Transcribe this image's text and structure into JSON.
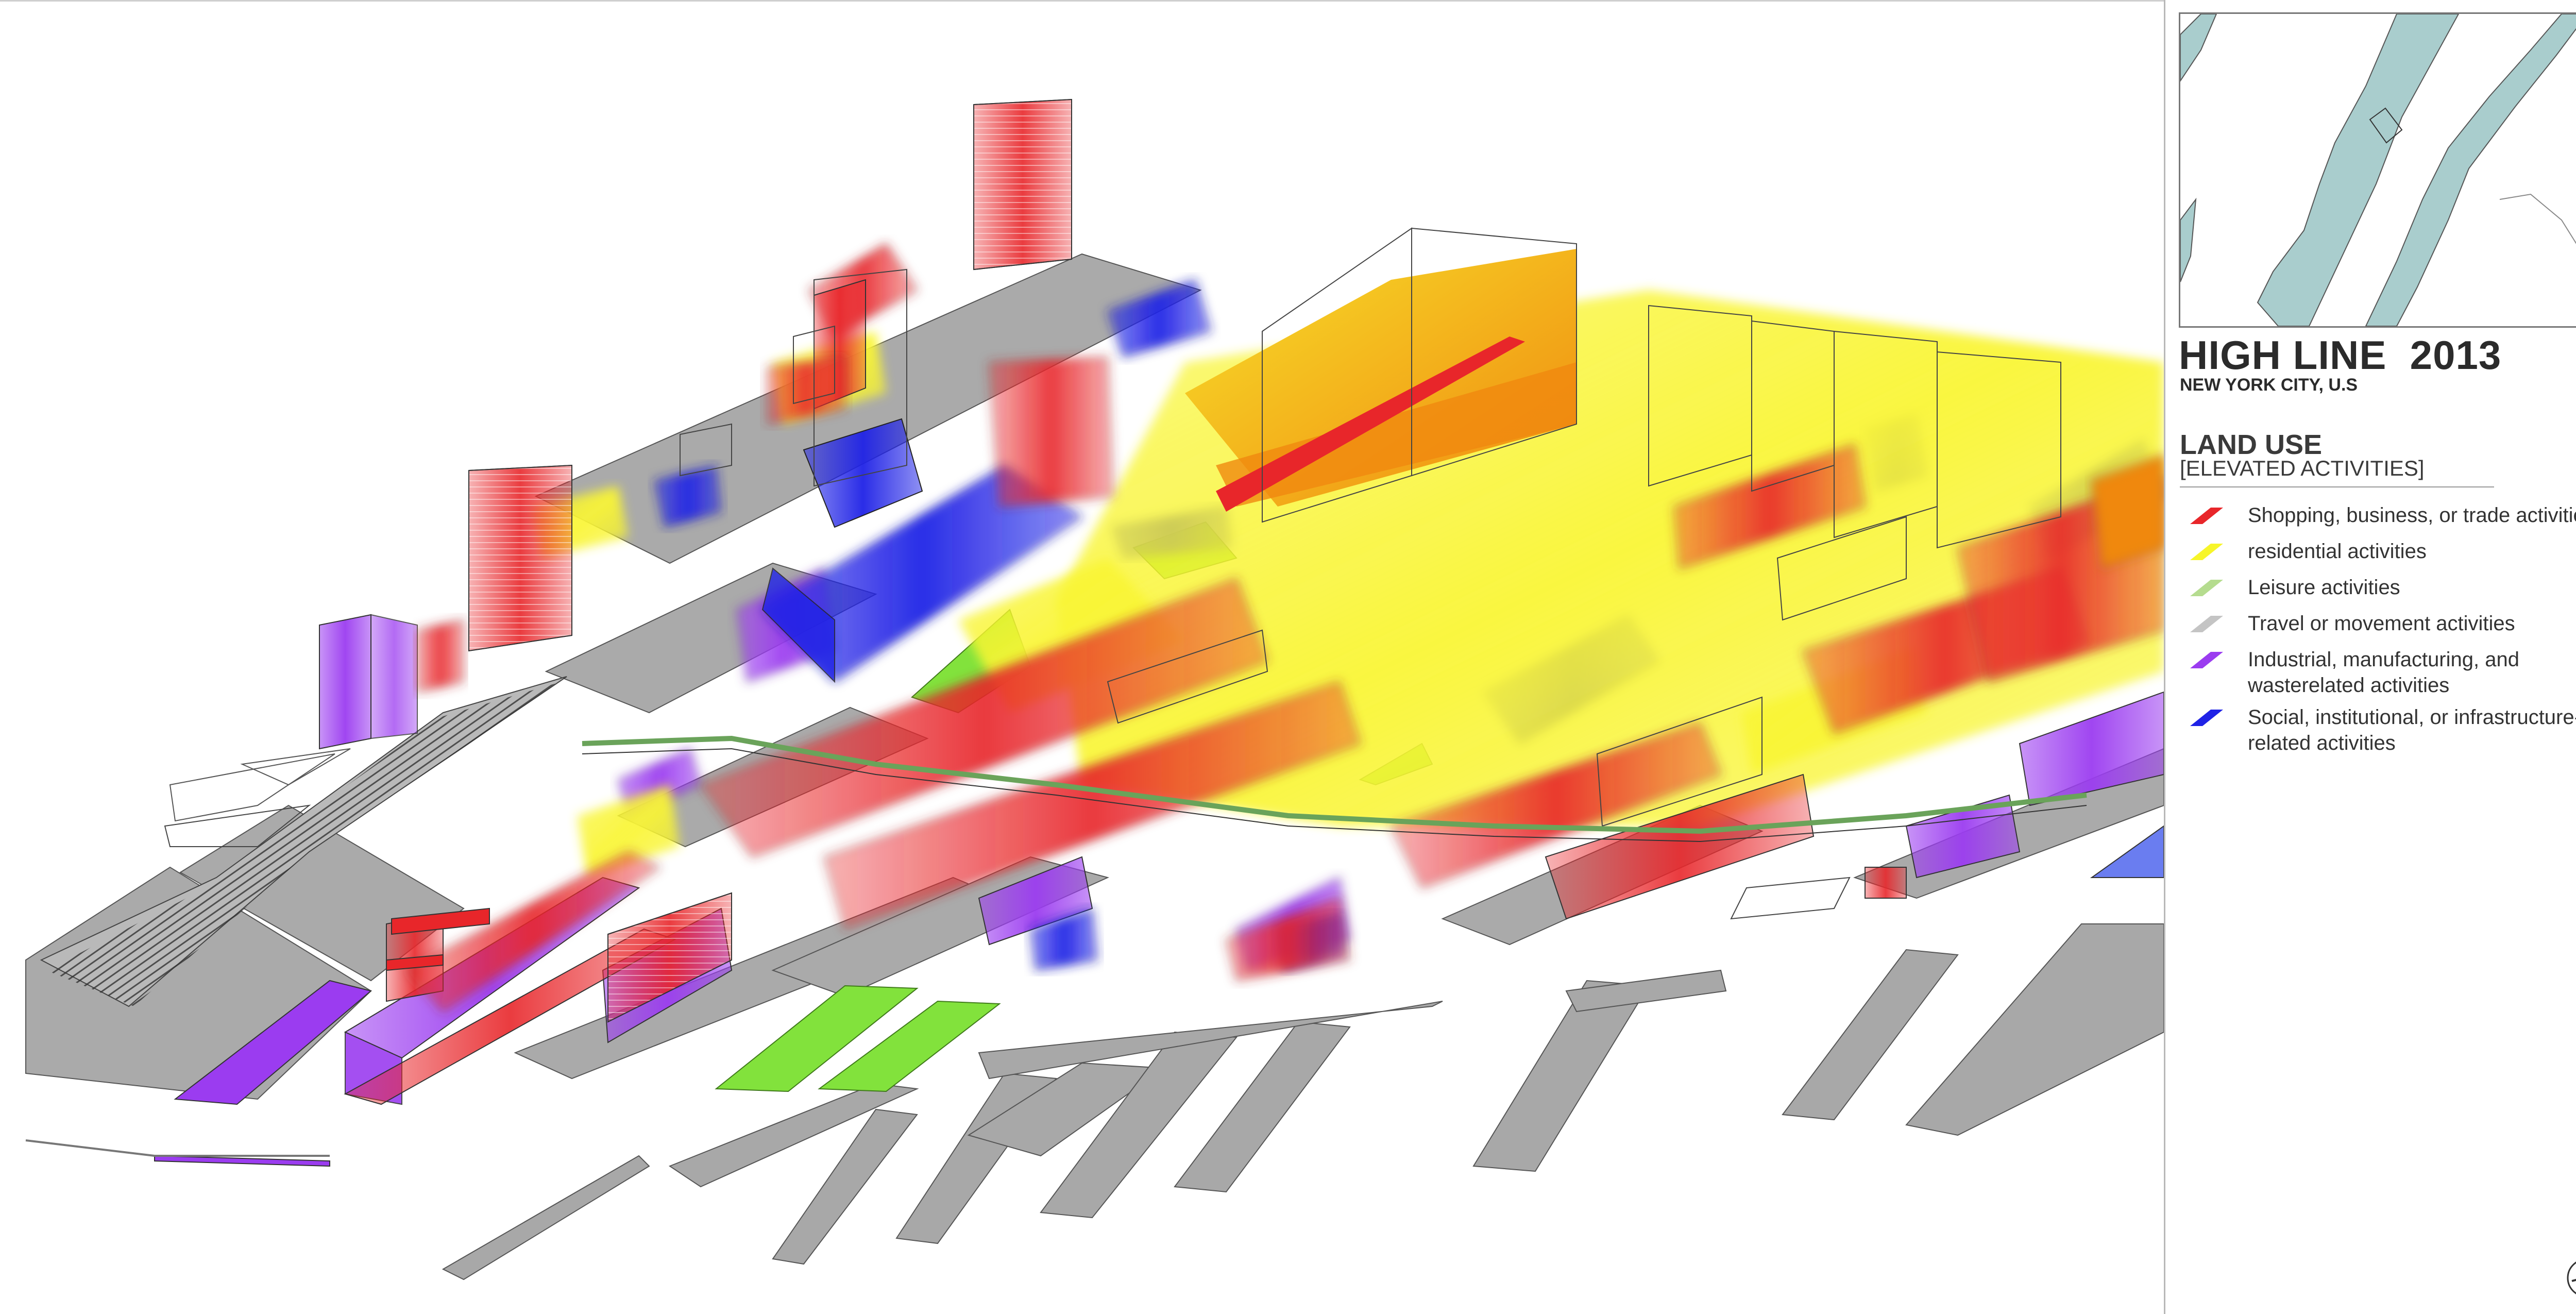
{
  "title": "HIGH LINE  2013",
  "subtitle": "NEW YORK CITY, U.S",
  "section": {
    "title": "LAND USE",
    "subtitle": "[ELEVATED ACTIVITIES]"
  },
  "legend": [
    {
      "key": "commercial",
      "label": "Shopping, business, or trade activities",
      "color": "#e8262a"
    },
    {
      "key": "residential",
      "label": "residential activities",
      "color": "#f7f52a"
    },
    {
      "key": "leisure",
      "label": "Leisure activities",
      "color": "#b5dc8f"
    },
    {
      "key": "travel",
      "label": "Travel or movement activities",
      "color": "#c4c4c4"
    },
    {
      "key": "industrial",
      "label": "Industrial, manufacturing, and wasterelated activities",
      "color": "#9b3cf0"
    },
    {
      "key": "social",
      "label": "Social, institutional, or infrastructure-related activities",
      "color": "#1f22e6"
    }
  ],
  "colors": {
    "ground": "#aaaaaa",
    "water": "#a9cdcd",
    "highline": "#6aa35a",
    "park": "#82e23c",
    "orange": "#f39a1a"
  },
  "icons": {
    "compass": "north-arrow-icon"
  }
}
